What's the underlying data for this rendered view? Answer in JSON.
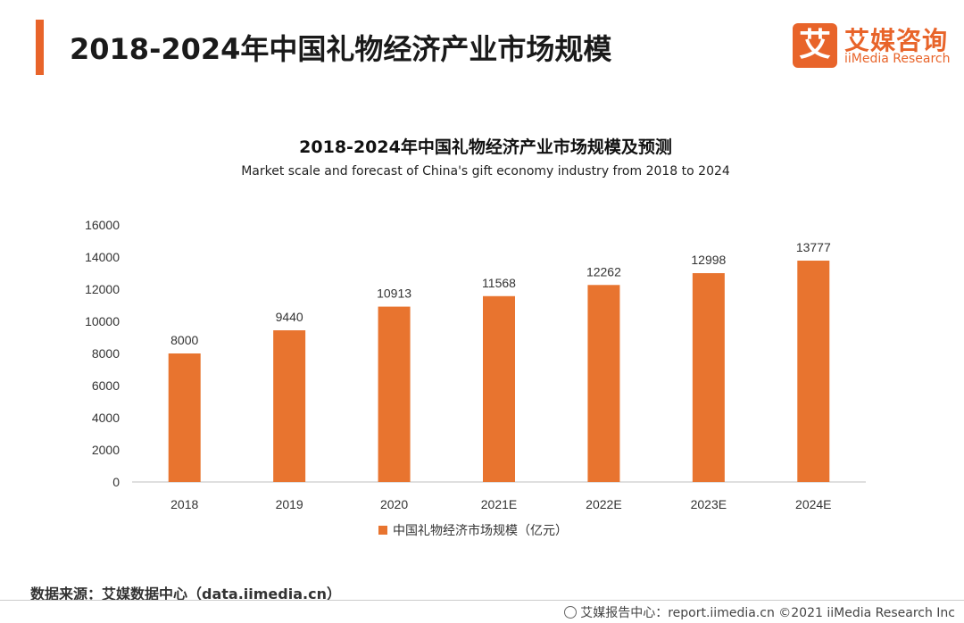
{
  "header": {
    "title": "2018-2024年中国礼物经济产业市场规模",
    "accent_color": "#e8642a"
  },
  "logo": {
    "mark": "艾",
    "name_cn": "艾媒咨询",
    "name_en": "iiMedia Research"
  },
  "chart_data": {
    "type": "bar",
    "title": "2018-2024年中国礼物经济产业市场规模及预测",
    "subtitle": "Market scale and forecast of China's gift economy industry from 2018 to 2024",
    "categories": [
      "2018",
      "2019",
      "2020",
      "2021E",
      "2022E",
      "2023E",
      "2024E"
    ],
    "series": [
      {
        "name": "中国礼物经济市场规模（亿元）",
        "values": [
          8000,
          9440,
          10913,
          11568,
          12262,
          12998,
          13777
        ],
        "color": "#e8742f"
      }
    ],
    "ylim": [
      0,
      16000
    ],
    "yticks": [
      "0",
      "2000",
      "4000",
      "6000",
      "8000",
      "10000",
      "12000",
      "14000",
      "16000"
    ],
    "data_labels": [
      "8000",
      "9440",
      "10913",
      "11568",
      "12262",
      "12998",
      "13777"
    ],
    "grid": false,
    "legend_position": "bottom-center"
  },
  "source": "数据来源：艾媒数据中心（data.iimedia.cn）",
  "footer": "艾媒报告中心：report.iimedia.cn  ©2021  iiMedia Research  Inc"
}
